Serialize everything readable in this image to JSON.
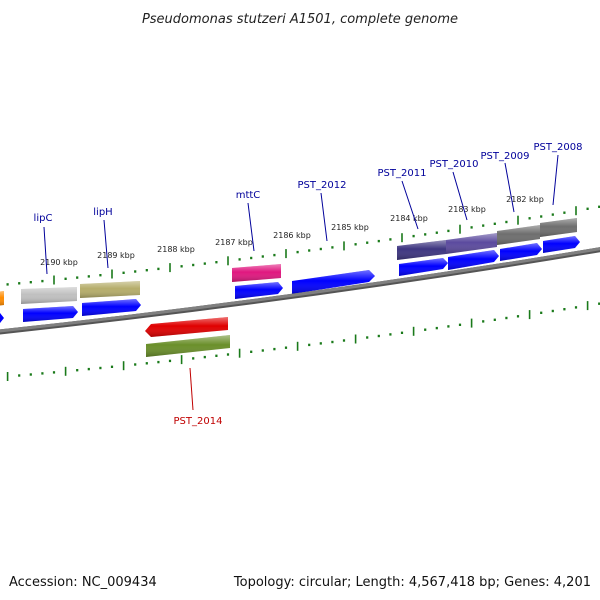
{
  "title": "Pseudomonas stutzeri A1501, complete genome",
  "footer": {
    "accession": "Accession: NC_009434",
    "summary": "Topology: circular; Length: 4,567,418 bp; Genes: 4,201"
  },
  "colors": {
    "backbone": "#808080",
    "tick": "#1a7a1a",
    "cds": "#0000ff",
    "label_forward": "#00009a",
    "label_reverse": "#c00000"
  },
  "ruler": {
    "labels": [
      "2190 kbp",
      "2189 kbp",
      "2188 kbp",
      "2187 kbp",
      "2186 kbp",
      "2185 kbp",
      "2184 kbp",
      "2183 kbp",
      "2182 kbp"
    ]
  },
  "gene_labels": [
    {
      "name": "lipC",
      "color": "#00009a"
    },
    {
      "name": "lipH",
      "color": "#00009a"
    },
    {
      "name": "mttC",
      "color": "#00009a"
    },
    {
      "name": "PST_2012",
      "color": "#00009a"
    },
    {
      "name": "PST_2011",
      "color": "#00009a"
    },
    {
      "name": "PST_2010",
      "color": "#00009a"
    },
    {
      "name": "PST_2009",
      "color": "#00009a"
    },
    {
      "name": "PST_2008",
      "color": "#00009a"
    },
    {
      "name": "PST_2014",
      "color": "#c00000"
    }
  ],
  "features": [
    {
      "color": "#ff8c00"
    },
    {
      "color": "#c0c0c0"
    },
    {
      "color": "#b5ad6a"
    },
    {
      "color": "#e0177f"
    },
    {
      "color": "#3d3580"
    },
    {
      "color": "#5b4a9e"
    },
    {
      "color": "#6e6e6e"
    },
    {
      "color": "#6e6e6e"
    },
    {
      "color": "#e00000"
    },
    {
      "color": "#6a8f2a"
    }
  ]
}
